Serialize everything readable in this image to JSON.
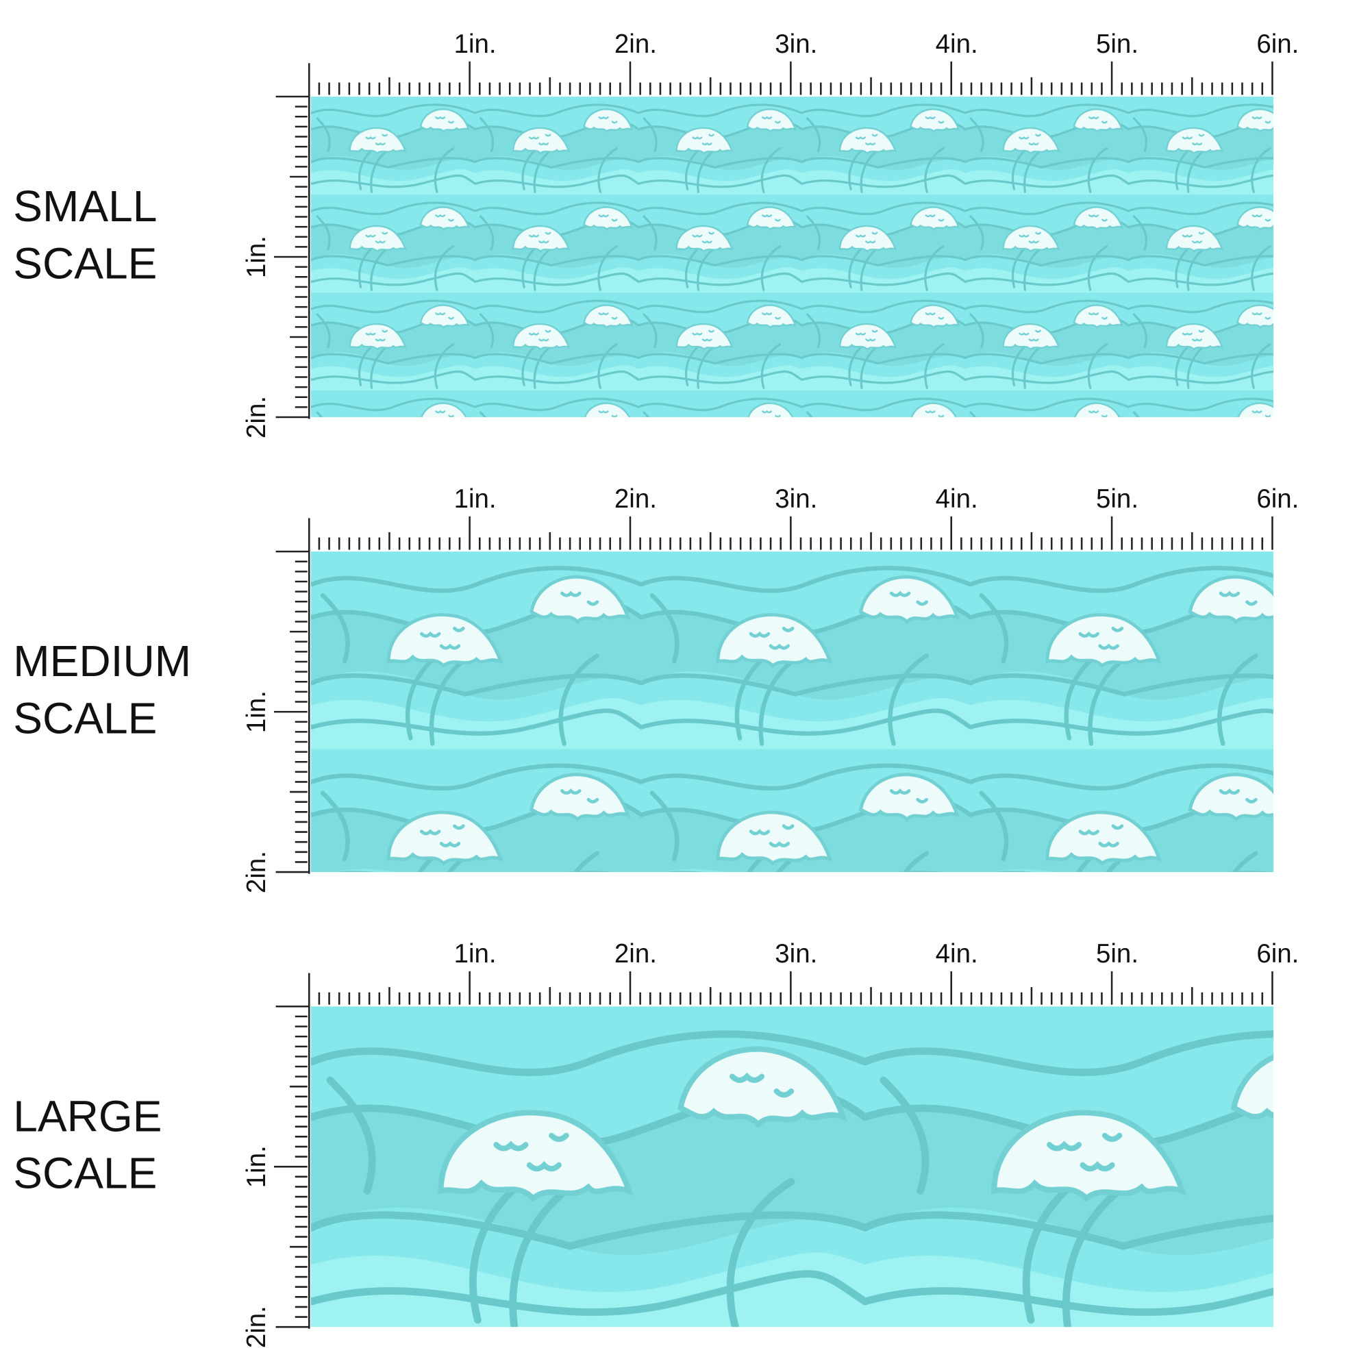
{
  "panels": [
    {
      "label": [
        "SMALL",
        "SCALE"
      ],
      "top_ruler": [
        "1in.",
        "2in.",
        "3in.",
        "4in.",
        "5in.",
        "6in."
      ],
      "side_ruler": [
        "1in.",
        "2in."
      ]
    },
    {
      "label": [
        "MEDIUM",
        "SCALE"
      ],
      "top_ruler": [
        "1in.",
        "2in.",
        "3in.",
        "4in.",
        "5in.",
        "6in."
      ],
      "side_ruler": [
        "1in.",
        "2in."
      ]
    },
    {
      "label": [
        "LARGE",
        "SCALE"
      ],
      "top_ruler": [
        "1in.",
        "2in.",
        "3in.",
        "4in.",
        "5in.",
        "6in."
      ],
      "side_ruler": [
        "1in.",
        "2in."
      ]
    }
  ]
}
